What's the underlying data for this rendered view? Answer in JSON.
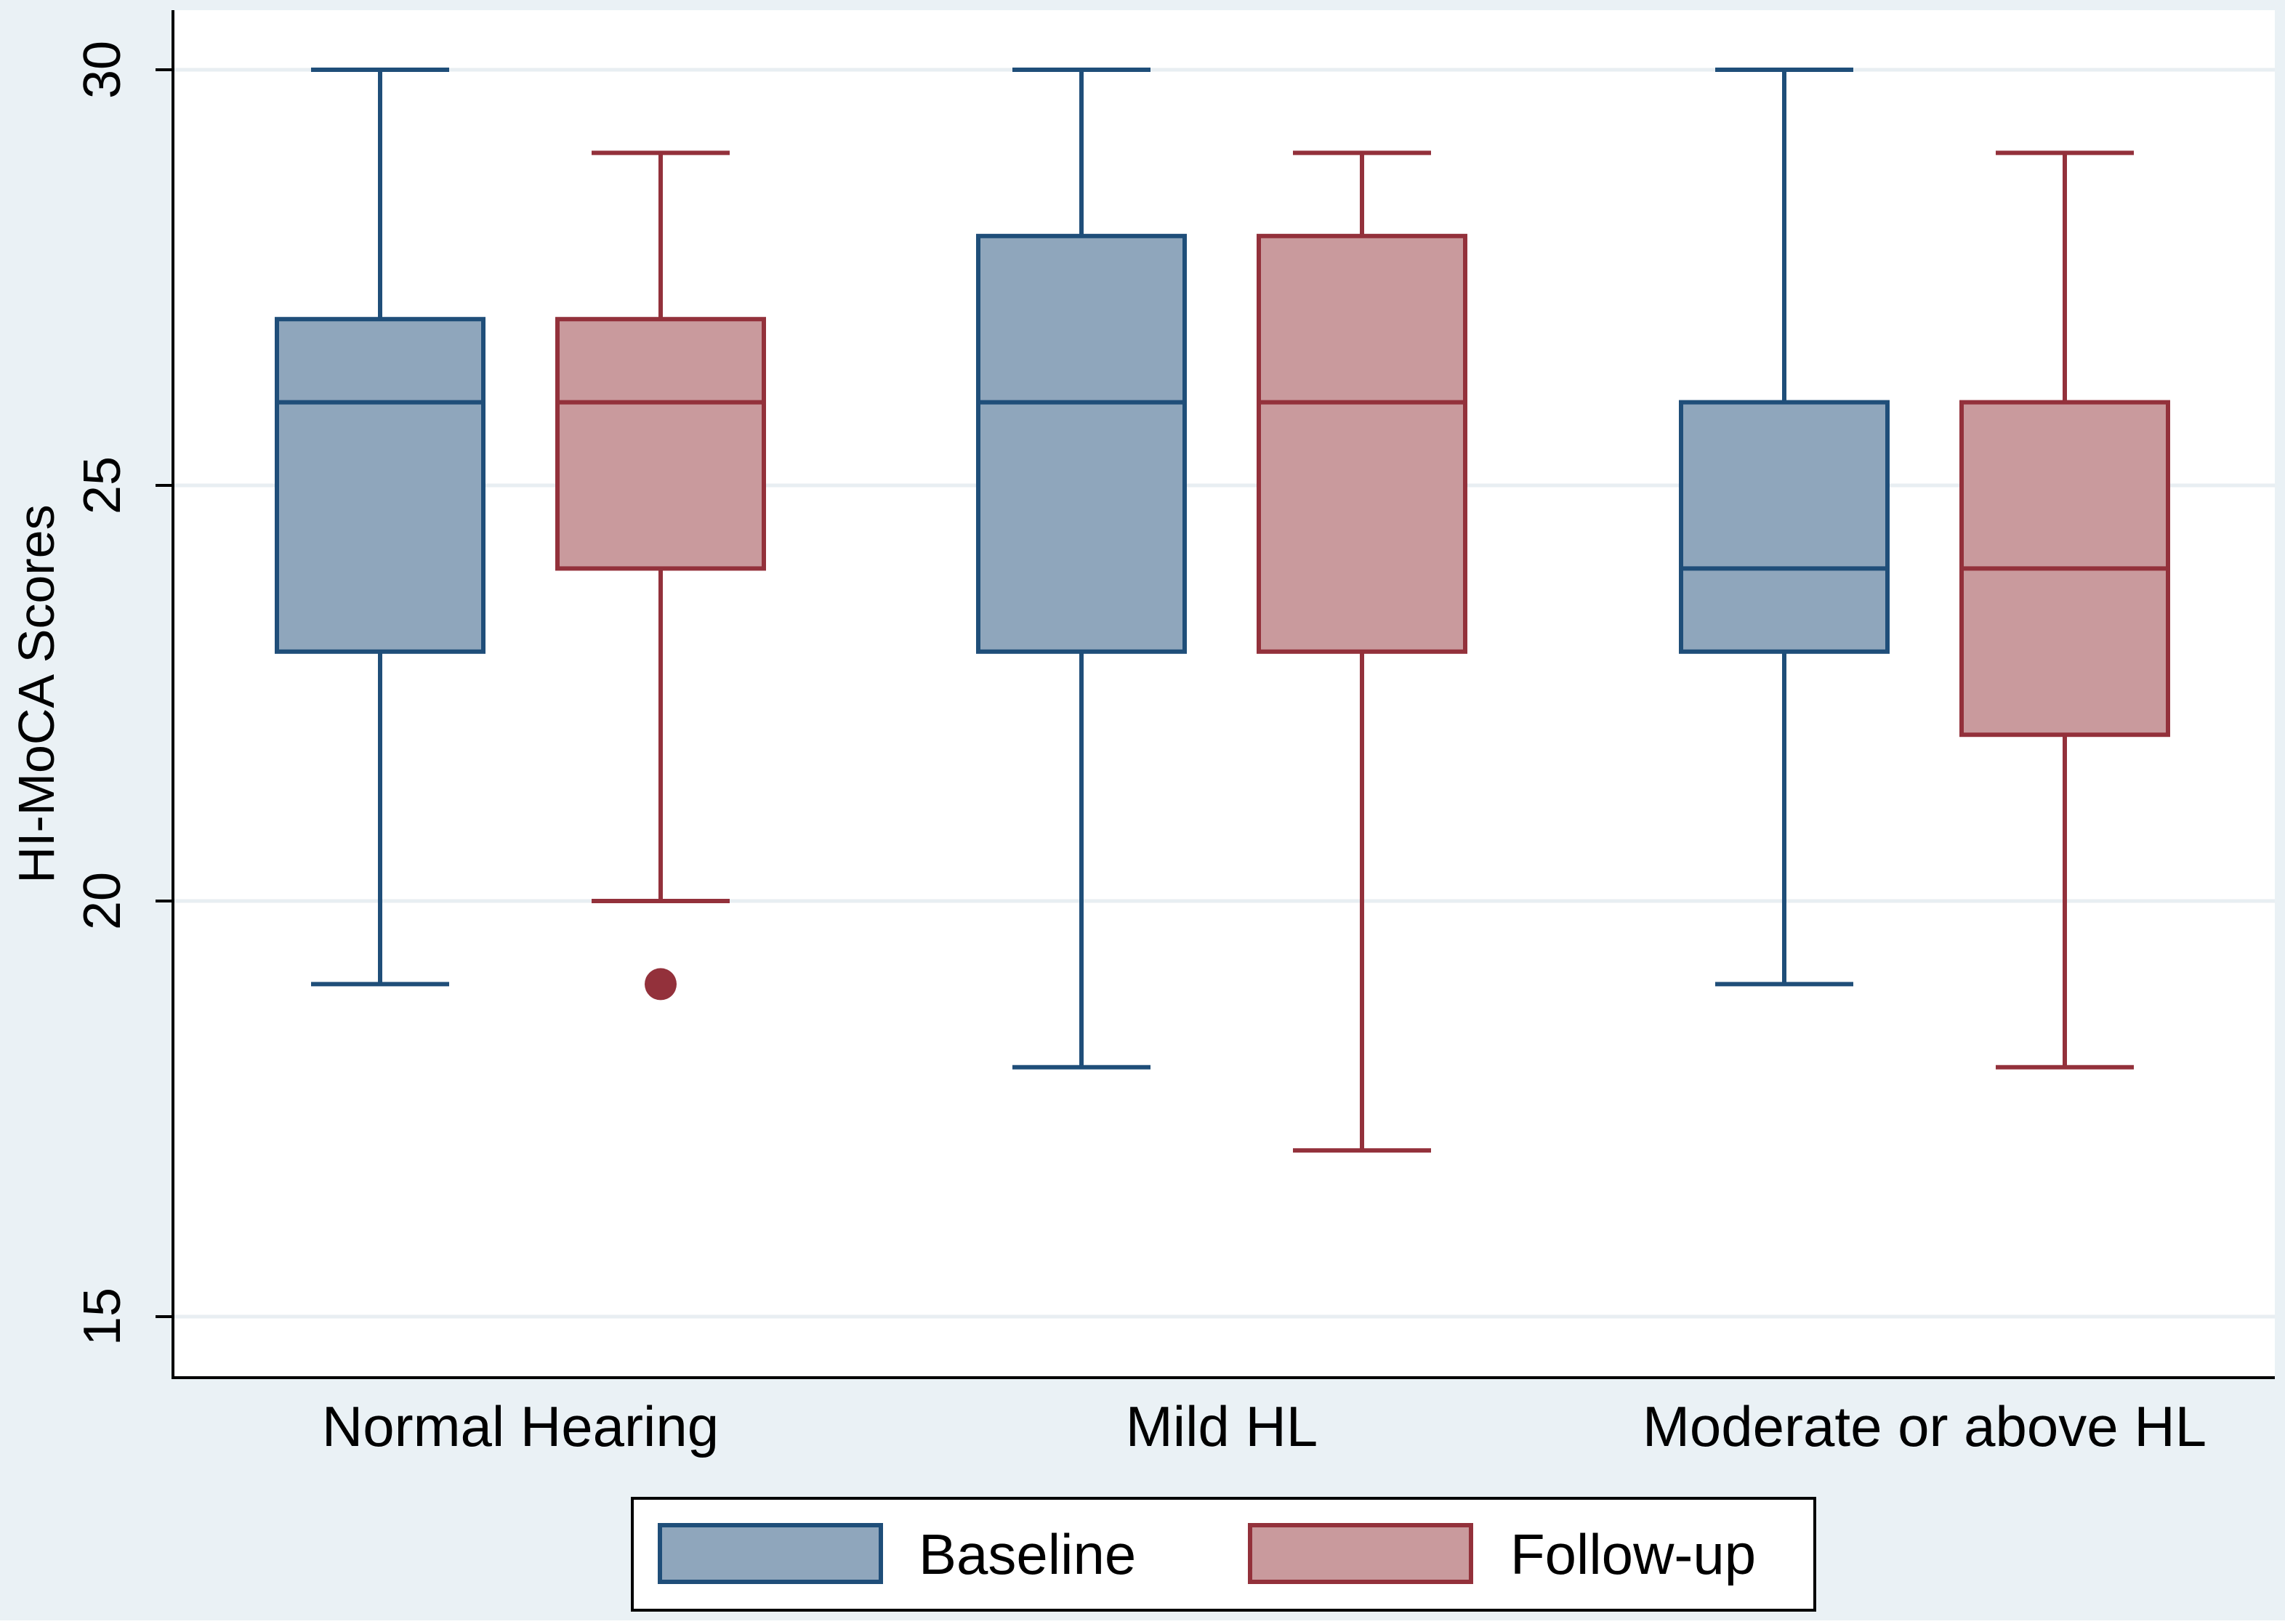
{
  "chart_data": {
    "type": "box",
    "title": "",
    "xlabel": "",
    "ylabel": "HI-MoCA Scores",
    "ylim": [
      14.3,
      30.8
    ],
    "yticks": [
      15,
      20,
      25,
      30
    ],
    "grid": true,
    "categories": [
      "Normal Hearing",
      "Mild HL",
      "Moderate or above HL"
    ],
    "series": [
      {
        "name": "Baseline",
        "color": "#1f4e79",
        "fill": "#8fa6bc",
        "boxes": [
          {
            "min": 19,
            "q1": 23,
            "median": 26,
            "q3": 27,
            "max": 30,
            "outliers": []
          },
          {
            "min": 18,
            "q1": 23,
            "median": 26,
            "q3": 28,
            "max": 30,
            "outliers": []
          },
          {
            "min": 19,
            "q1": 23,
            "median": 24,
            "q3": 26,
            "max": 30,
            "outliers": []
          }
        ]
      },
      {
        "name": "Follow-up",
        "color": "#93313b",
        "fill": "#c99a9d",
        "boxes": [
          {
            "min": 20,
            "q1": 24,
            "median": 26,
            "q3": 27,
            "max": 29,
            "outliers": [
              19
            ]
          },
          {
            "min": 17,
            "q1": 23,
            "median": 26,
            "q3": 28,
            "max": 29,
            "outliers": []
          },
          {
            "min": 18,
            "q1": 22,
            "median": 24,
            "q3": 26,
            "max": 29,
            "outliers": []
          }
        ]
      }
    ],
    "legend": {
      "position": "bottom",
      "items": [
        "Baseline",
        "Follow-up"
      ]
    },
    "colors": {
      "background": "#eaf1f5",
      "plot": "#ffffff",
      "grid": "#e8eef2",
      "axis": "#000000"
    }
  }
}
